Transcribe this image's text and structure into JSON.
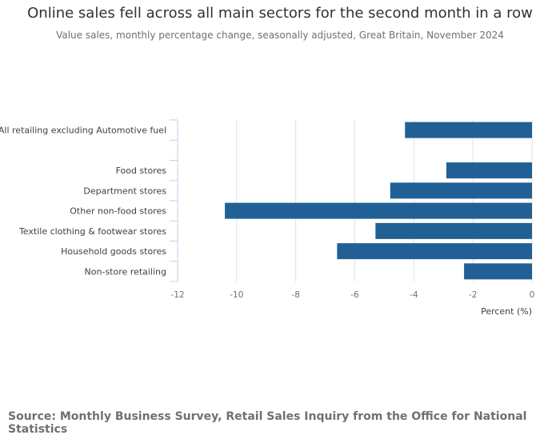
{
  "title": "Online sales fell across all main sectors for the second month in a row",
  "subtitle": "Value sales, monthly percentage change, seasonally adjusted, Great Britain, November 2024",
  "source": "Source: Monthly Business Survey, Retail Sales Inquiry from the Office for National Statistics",
  "colors": {
    "bar": "#206095",
    "grid": "#e2e2e3",
    "axis": "#bcd2e6"
  },
  "chart_data": {
    "type": "bar",
    "orientation": "horizontal",
    "categories": [
      "All retailing excluding Automotive fuel",
      "",
      "Food stores",
      "Department stores",
      "Other non-food stores",
      "Textile clothing & footwear stores",
      "Household goods stores",
      "Non-store retailing"
    ],
    "values": [
      -4.3,
      null,
      -2.9,
      -4.8,
      -10.4,
      -5.3,
      -6.6,
      -2.3
    ],
    "xlabel": "Percent (%)",
    "xlim": [
      -12,
      0
    ],
    "xticks": [
      "-12",
      "-10",
      "-8",
      "-6",
      "-4",
      "-2",
      "0"
    ],
    "grid": true
  }
}
